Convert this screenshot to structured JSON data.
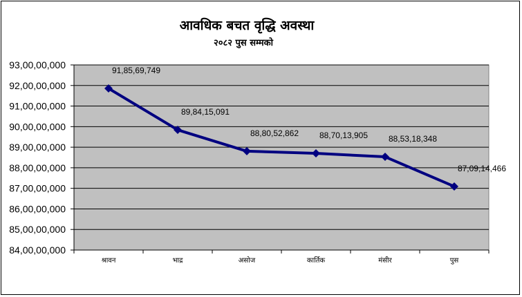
{
  "chart_data": {
    "type": "line",
    "title": "आवधिक बचत वृद्धि अवस्था",
    "subtitle": "२०८२ पुस सम्मको",
    "categories": [
      "श्रावन",
      "भाद्र",
      "असोज",
      "कार्तिक",
      "मंसीर",
      "पुस"
    ],
    "values": [
      918569749,
      898415091,
      888052862,
      887013905,
      885318348,
      870914466
    ],
    "data_labels": [
      "91,85,69,749",
      "89,84,15,091",
      "88,80,52,862",
      "88,70,13,905",
      "88,53,18,348",
      "87,09,14,466"
    ],
    "yticks": [
      "84,00,00,000",
      "85,00,00,000",
      "86,00,00,000",
      "87,00,00,000",
      "88,00,00,000",
      "89,00,00,000",
      "90,00,00,000",
      "91,00,00,000",
      "92,00,00,000",
      "93,00,00,000"
    ],
    "ylim": [
      840000000,
      930000000
    ],
    "grid": true,
    "legend": "none",
    "colors": {
      "line": "#000080",
      "plot_bg": "#c0c0c0",
      "grid": "#000000"
    }
  }
}
